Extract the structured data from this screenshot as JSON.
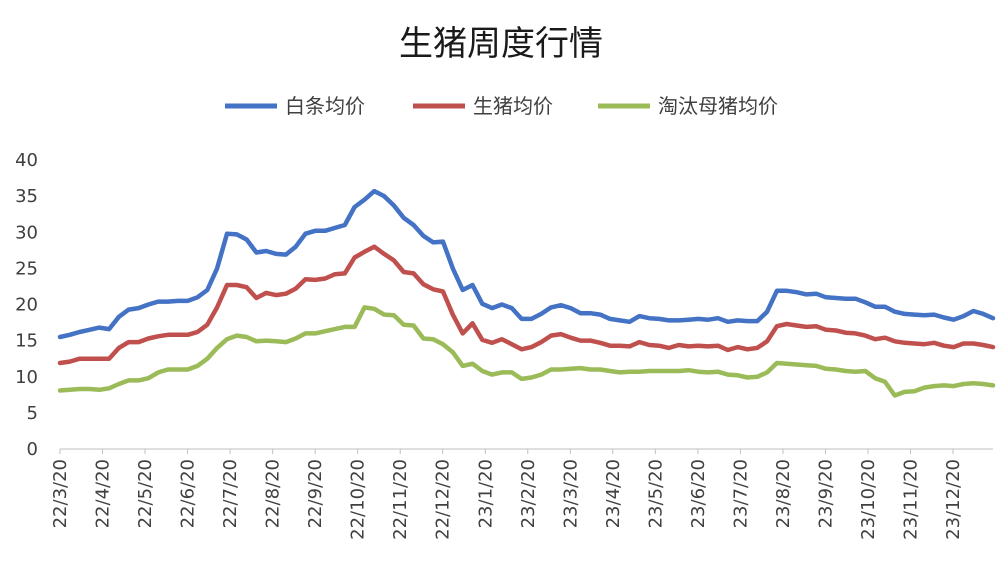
{
  "chart_data": {
    "type": "line",
    "title": "生猪周度行情",
    "xlabel": "",
    "ylabel": "",
    "ylim": [
      0,
      40
    ],
    "yticks": [
      0,
      5,
      10,
      15,
      20,
      25,
      30,
      35,
      40
    ],
    "grid": false,
    "legend_position": "top",
    "x_tick_labels": [
      "22/3/20",
      "22/4/20",
      "22/5/20",
      "22/6/20",
      "22/7/20",
      "22/8/20",
      "22/9/20",
      "22/10/20",
      "22/11/20",
      "22/12/20",
      "23/1/20",
      "23/2/20",
      "23/3/20",
      "23/4/20",
      "23/5/20",
      "23/6/20",
      "23/7/20",
      "23/8/20",
      "23/9/20",
      "23/10/20",
      "23/11/20",
      "23/12/20"
    ],
    "series": [
      {
        "name": "白条均价",
        "color": "#4472c4",
        "values": [
          15.5,
          15.8,
          16.2,
          16.5,
          16.8,
          16.6,
          18.3,
          19.3,
          19.5,
          20.0,
          20.4,
          20.4,
          20.5,
          20.5,
          21.0,
          22.0,
          25.0,
          29.8,
          29.7,
          29.0,
          27.2,
          27.4,
          27.0,
          26.9,
          28.0,
          29.8,
          30.2,
          30.2,
          30.6,
          31.0,
          33.5,
          34.5,
          35.7,
          35.0,
          33.7,
          32.0,
          31.0,
          29.5,
          28.6,
          28.7,
          25.0,
          22.0,
          22.7,
          20.1,
          19.5,
          20.0,
          19.5,
          18.0,
          18.0,
          18.7,
          19.6,
          19.9,
          19.5,
          18.8,
          18.8,
          18.6,
          18.0,
          17.8,
          17.6,
          18.4,
          18.1,
          18.0,
          17.8,
          17.8,
          17.9,
          18.0,
          17.9,
          18.1,
          17.6,
          17.8,
          17.7,
          17.7,
          19.0,
          21.9,
          21.9,
          21.7,
          21.4,
          21.5,
          21.0,
          20.9,
          20.8,
          20.8,
          20.3,
          19.7,
          19.7,
          19.0,
          18.7,
          18.6,
          18.5,
          18.6,
          18.2,
          17.9,
          18.4,
          19.1,
          18.7,
          18.1
        ]
      },
      {
        "name": "生猪均价",
        "color": "#c0504d",
        "values": [
          11.9,
          12.1,
          12.5,
          12.5,
          12.5,
          12.5,
          14.0,
          14.8,
          14.8,
          15.3,
          15.6,
          15.8,
          15.8,
          15.8,
          16.2,
          17.2,
          19.6,
          22.7,
          22.7,
          22.4,
          20.9,
          21.6,
          21.3,
          21.5,
          22.2,
          23.5,
          23.4,
          23.6,
          24.2,
          24.3,
          26.5,
          27.3,
          28.0,
          27.0,
          26.1,
          24.5,
          24.3,
          22.8,
          22.1,
          21.8,
          18.6,
          16.0,
          17.4,
          15.1,
          14.7,
          15.2,
          14.5,
          13.8,
          14.1,
          14.8,
          15.7,
          15.9,
          15.4,
          15.0,
          15.0,
          14.7,
          14.3,
          14.3,
          14.2,
          14.8,
          14.4,
          14.3,
          14.0,
          14.4,
          14.2,
          14.3,
          14.2,
          14.3,
          13.7,
          14.1,
          13.8,
          14.0,
          14.9,
          17.0,
          17.3,
          17.1,
          16.9,
          17.0,
          16.5,
          16.4,
          16.1,
          16.0,
          15.7,
          15.2,
          15.4,
          14.9,
          14.7,
          14.6,
          14.5,
          14.7,
          14.3,
          14.1,
          14.6,
          14.6,
          14.4,
          14.1
        ]
      },
      {
        "name": "淘汰母猪均价",
        "color": "#9bbb59",
        "values": [
          8.1,
          8.2,
          8.3,
          8.3,
          8.2,
          8.4,
          9.0,
          9.5,
          9.5,
          9.8,
          10.6,
          11.0,
          11.0,
          11.0,
          11.5,
          12.5,
          14.0,
          15.2,
          15.7,
          15.5,
          14.9,
          15.0,
          14.9,
          14.8,
          15.3,
          16.0,
          16.0,
          16.3,
          16.6,
          16.9,
          16.9,
          19.6,
          19.4,
          18.6,
          18.5,
          17.2,
          17.1,
          15.3,
          15.2,
          14.5,
          13.4,
          11.5,
          11.8,
          10.8,
          10.3,
          10.6,
          10.6,
          9.7,
          9.9,
          10.3,
          11.0,
          11.0,
          11.1,
          11.2,
          11.0,
          11.0,
          10.8,
          10.6,
          10.7,
          10.7,
          10.8,
          10.8,
          10.8,
          10.8,
          10.9,
          10.7,
          10.6,
          10.7,
          10.3,
          10.2,
          9.9,
          10.0,
          10.6,
          11.9,
          11.8,
          11.7,
          11.6,
          11.5,
          11.1,
          11.0,
          10.8,
          10.7,
          10.8,
          9.8,
          9.3,
          7.4,
          7.9,
          8.0,
          8.5,
          8.7,
          8.8,
          8.7,
          9.0,
          9.1,
          9.0,
          8.8
        ]
      }
    ]
  }
}
